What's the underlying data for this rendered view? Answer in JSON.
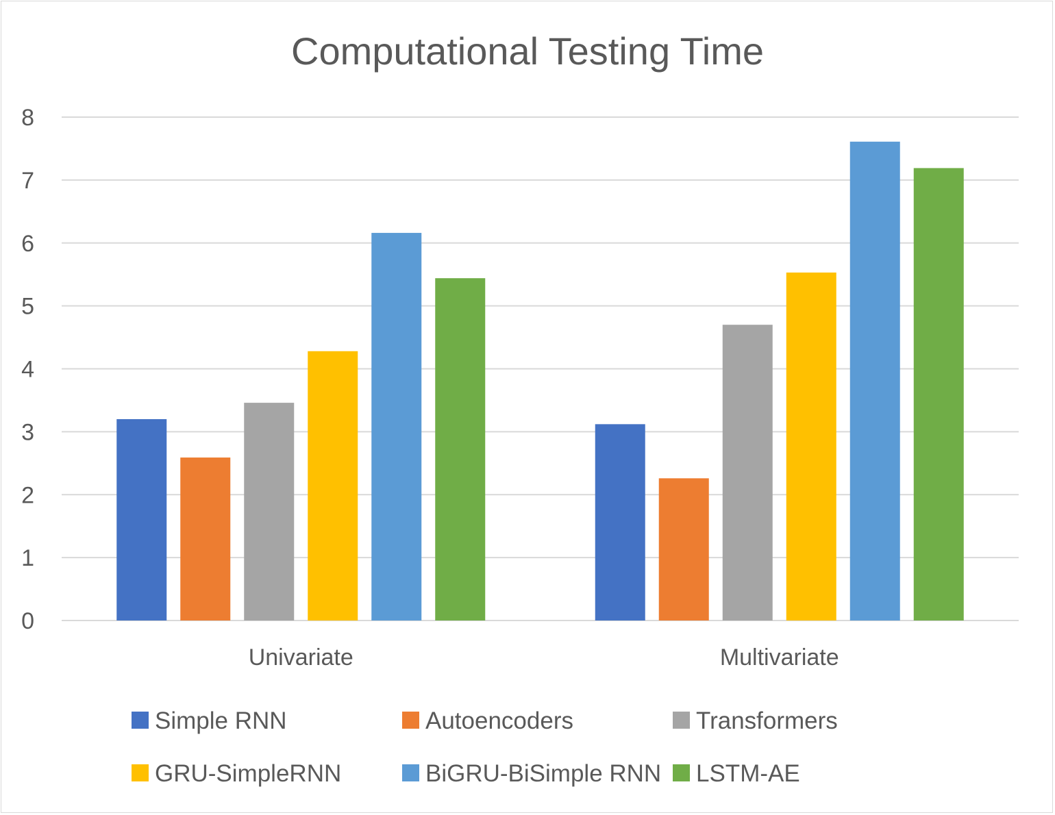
{
  "chart_data": {
    "type": "bar",
    "title": "Computational Testing Time",
    "xlabel": "",
    "ylabel": "",
    "categories": [
      "Univariate",
      "Multivariate"
    ],
    "series": [
      {
        "name": "Simple RNN",
        "color": "#4472c4",
        "values": [
          3.2,
          3.12
        ]
      },
      {
        "name": "Autoencoders",
        "color": "#ed7d31",
        "values": [
          2.59,
          2.26
        ]
      },
      {
        "name": "Transformers",
        "color": "#a5a5a5",
        "values": [
          3.46,
          4.7
        ]
      },
      {
        "name": "GRU-SimpleRNN",
        "color": "#ffc000",
        "values": [
          4.28,
          5.53
        ]
      },
      {
        "name": "BiGRU-BiSimple RNN",
        "color": "#5b9bd5",
        "values": [
          6.16,
          7.61
        ]
      },
      {
        "name": "LSTM-AE",
        "color": "#70ad47",
        "values": [
          5.44,
          7.19
        ]
      }
    ],
    "ylim": [
      0,
      8
    ],
    "yticks": [
      0,
      1,
      2,
      3,
      4,
      5,
      6,
      7,
      8
    ],
    "grid": true,
    "legend": "bottom"
  }
}
